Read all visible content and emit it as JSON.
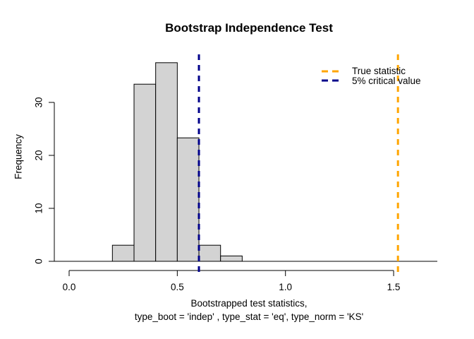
{
  "chart_data": {
    "type": "bar",
    "subtype": "histogram",
    "title": "Bootstrap Independence Test",
    "xlabel_line1": "Bootstrapped test statistics,",
    "xlabel_line2": "type_boot = 'indep' , type_stat = 'eq', type_norm = 'KS'",
    "ylabel": "Frequency",
    "bin_breaks": [
      0.2,
      0.3,
      0.4,
      0.5,
      0.6,
      0.7,
      0.8
    ],
    "counts": [
      3,
      33,
      37,
      23,
      3,
      1
    ],
    "x_ticks": [
      {
        "label": "0.0",
        "value": 0.0
      },
      {
        "label": "0.5",
        "value": 0.5
      },
      {
        "label": "1.0",
        "value": 1.0
      },
      {
        "label": "1.5",
        "value": 1.5
      }
    ],
    "y_ticks": [
      {
        "label": "0",
        "value": 0
      },
      {
        "label": "10",
        "value": 10
      },
      {
        "label": "20",
        "value": 20
      },
      {
        "label": "30",
        "value": 30
      }
    ],
    "xlim": [
      0,
      1.7
    ],
    "ylim": [
      0,
      37
    ],
    "grid": false,
    "bar_fill": "#d3d3d3",
    "bar_border": "#000000",
    "axis_color": "#000000",
    "vlines": [
      {
        "name": "true-statistic",
        "value": 1.52,
        "color": "#ffa500",
        "style": "dashed"
      },
      {
        "name": "critical-value",
        "value": 0.6,
        "color": "#00008b",
        "style": "dashed"
      }
    ],
    "legend": {
      "position": "topright",
      "entries": [
        {
          "label": "True statistic",
          "color": "#ffa500",
          "style": "dashed"
        },
        {
          "label": "5% critical value",
          "color": "#00008b",
          "style": "dashed"
        }
      ]
    }
  }
}
